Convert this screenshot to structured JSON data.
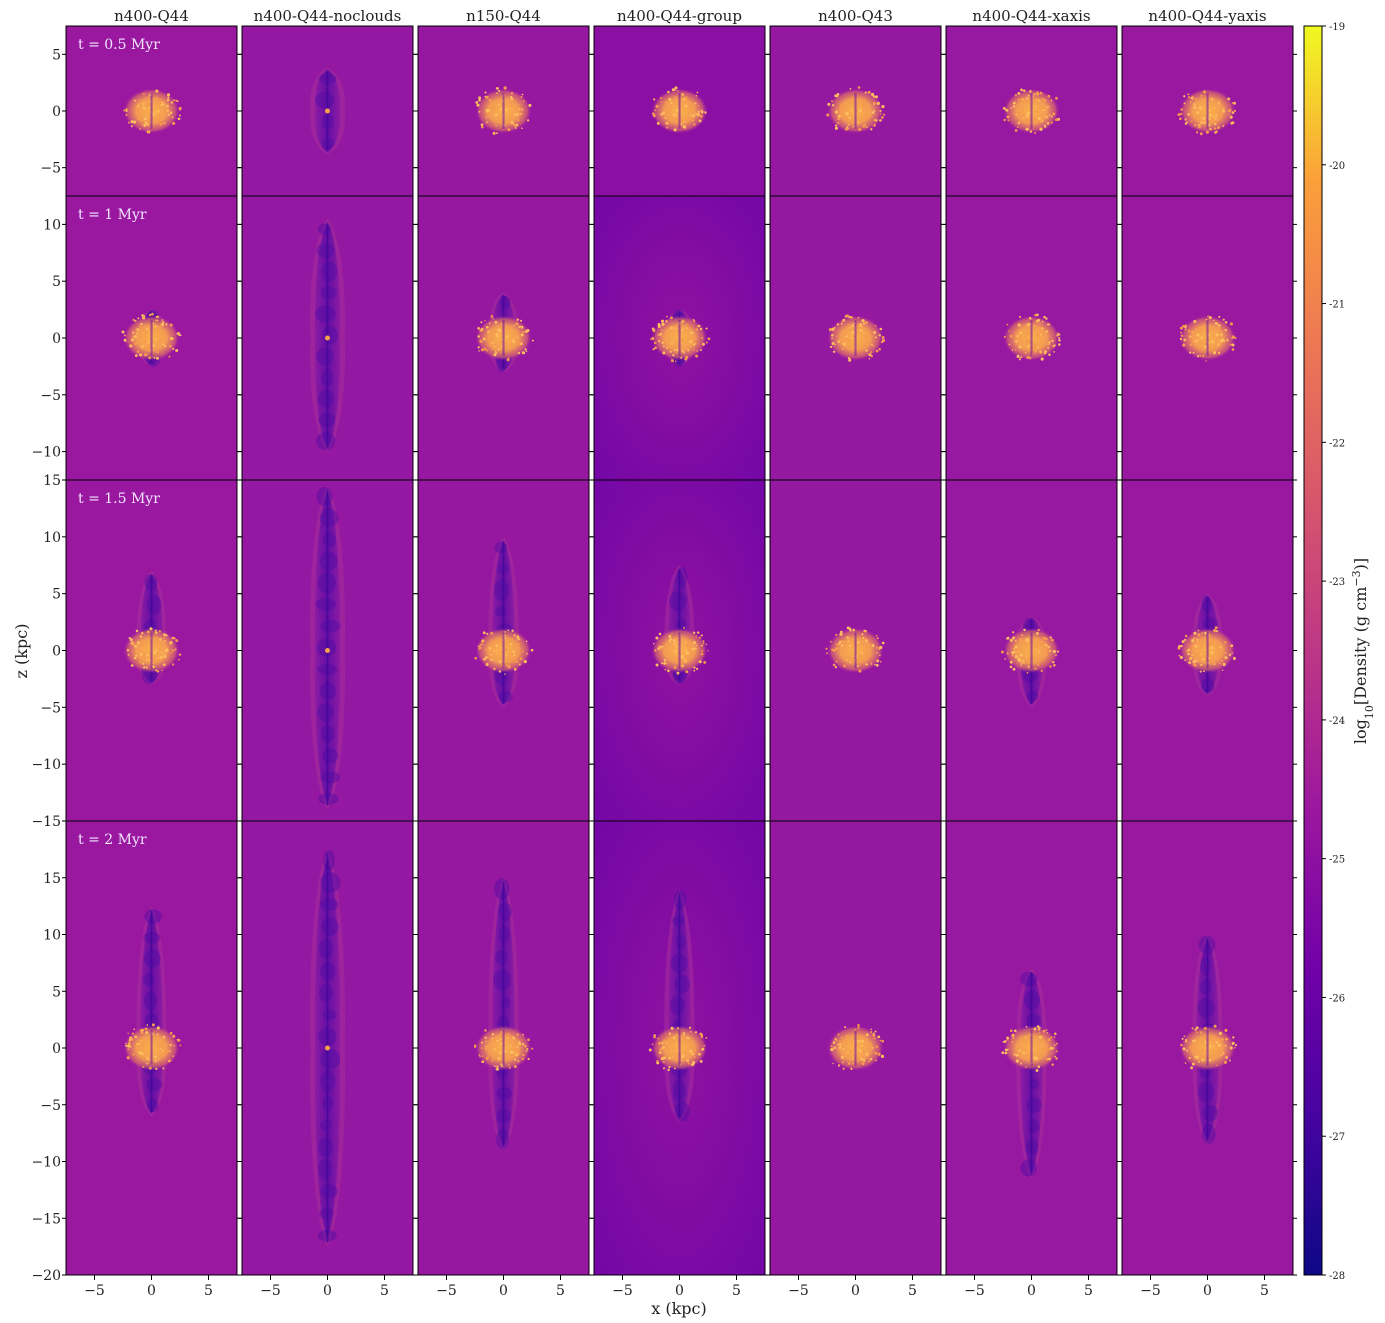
{
  "chart_data": {
    "type": "heatmap",
    "description_kind": "grid of density slice panels (rows = times, columns = simulations)",
    "columns": [
      "n400-Q44",
      "n400-Q44-noclouds",
      "n150-Q44",
      "n400-Q44-group",
      "n400-Q43",
      "n400-Q44-xaxis",
      "n400-Q44-yaxis"
    ],
    "rows": [
      {
        "time_label": "t = 0.5 Myr",
        "zlim": [
          -7.5,
          7.5
        ],
        "zticks": [
          5,
          0,
          -5
        ],
        "outflow_top": [
          0,
          3.8,
          1.4,
          0,
          0,
          0,
          0
        ],
        "outflow_bottom": [
          0,
          -3.8,
          -1.4,
          0,
          0,
          0,
          0
        ]
      },
      {
        "time_label": "t = 1 Myr",
        "zlim": [
          -12.5,
          12.5
        ],
        "zticks": [
          10,
          5,
          0,
          -5,
          -10
        ],
        "outflow_top": [
          2.5,
          10.5,
          4,
          2.5,
          0,
          0,
          0
        ],
        "outflow_bottom": [
          -2.5,
          -10,
          -3,
          -2.5,
          0,
          0,
          0
        ]
      },
      {
        "time_label": "t = 1.5 Myr",
        "zlim": [
          -15,
          15
        ],
        "zticks": [
          15,
          10,
          5,
          0,
          -5,
          -10,
          -15
        ],
        "outflow_top": [
          7,
          14.5,
          10,
          7.5,
          0,
          3,
          5
        ],
        "outflow_bottom": [
          -3,
          -14,
          -5,
          -3,
          0,
          -5,
          -4
        ]
      },
      {
        "time_label": "t = 2 Myr",
        "zlim": [
          -20,
          20
        ],
        "zticks": [
          15,
          10,
          5,
          0,
          -5,
          -10,
          -15,
          -20
        ],
        "outflow_top": [
          12.5,
          17.5,
          15,
          14,
          0,
          7,
          10
        ],
        "outflow_bottom": [
          -6,
          -17.5,
          -9,
          -6.5,
          0,
          -11.5,
          -8.5
        ]
      }
    ],
    "x_ticks": [
      -5,
      0,
      5
    ],
    "xlim": [
      -7.5,
      7.5
    ],
    "xlabel": "x (kpc)",
    "ylabel": "z (kpc)",
    "colorbar": {
      "label": "log10[Density (g cm^-3)]",
      "label_main": "log",
      "label_sub": "10",
      "label_rest": "[Density (g cm",
      "label_sup": "−3",
      "label_end": ")]",
      "range": [
        -28,
        -19
      ],
      "ticks": [
        -19,
        -20,
        -21,
        -22,
        -23,
        -24,
        -25,
        -26,
        -27,
        -28
      ],
      "colormap": "plasma"
    }
  }
}
